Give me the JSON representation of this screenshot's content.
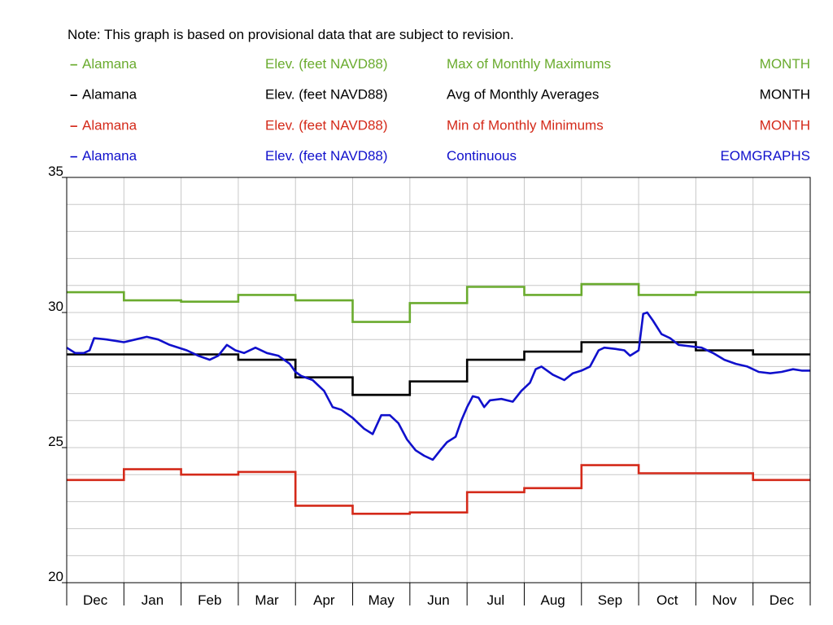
{
  "note": "Note: This graph is based on provisional data that are subject to revision.",
  "legend": [
    {
      "marker": "–",
      "site": "Alamana",
      "param": "Elev. (feet NAVD88)",
      "stat": "Max of Monthly Maximums",
      "period": "MONTH",
      "color": "#6aab2e"
    },
    {
      "marker": "–",
      "site": "Alamana",
      "param": "Elev. (feet NAVD88)",
      "stat": "Avg of Monthly Averages",
      "period": "MONTH",
      "color": "#000000"
    },
    {
      "marker": "–",
      "site": "Alamana",
      "param": "Elev. (feet NAVD88)",
      "stat": "Min of Monthly Minimums",
      "period": "MONTH",
      "color": "#d42a1a"
    },
    {
      "marker": "–",
      "site": "Alamana",
      "param": "Elev. (feet NAVD88)",
      "stat": "Continuous",
      "period": "EOMGRAPHS",
      "color": "#1010cc"
    }
  ],
  "chart_data": {
    "type": "line",
    "xlim": [
      0,
      13
    ],
    "ylim": [
      20,
      35
    ],
    "yticks": [
      20,
      25,
      30,
      35
    ],
    "months": [
      "Dec",
      "Jan",
      "Feb",
      "Mar",
      "Apr",
      "May",
      "Jun",
      "Jul",
      "Aug",
      "Sep",
      "Oct",
      "Nov",
      "Dec"
    ],
    "grid": true,
    "step_series": [
      {
        "stat": "Max of Monthly Maximums",
        "color": "#6aab2e",
        "values": [
          30.75,
          30.45,
          30.4,
          30.65,
          30.45,
          29.65,
          30.35,
          30.95,
          30.65,
          31.05,
          30.65,
          30.75,
          30.75
        ]
      },
      {
        "stat": "Avg of Monthly Averages",
        "color": "#000000",
        "values": [
          28.45,
          28.45,
          28.45,
          28.25,
          27.6,
          26.95,
          27.45,
          28.25,
          28.55,
          28.9,
          28.9,
          28.6,
          28.45
        ]
      },
      {
        "stat": "Min of Monthly Minimums",
        "color": "#d42a1a",
        "values": [
          23.8,
          24.2,
          24.0,
          24.1,
          22.85,
          22.55,
          22.6,
          23.35,
          23.5,
          24.35,
          24.05,
          24.05,
          23.8
        ]
      }
    ],
    "continuous": {
      "stat": "Continuous",
      "color": "#1010cc",
      "points": [
        [
          0.0,
          28.7
        ],
        [
          0.15,
          28.5
        ],
        [
          0.3,
          28.5
        ],
        [
          0.4,
          28.6
        ],
        [
          0.48,
          29.05
        ],
        [
          0.7,
          29.0
        ],
        [
          1.0,
          28.9
        ],
        [
          1.2,
          29.0
        ],
        [
          1.4,
          29.1
        ],
        [
          1.6,
          29.0
        ],
        [
          1.8,
          28.8
        ],
        [
          2.1,
          28.6
        ],
        [
          2.3,
          28.4
        ],
        [
          2.5,
          28.25
        ],
        [
          2.65,
          28.4
        ],
        [
          2.8,
          28.8
        ],
        [
          2.95,
          28.6
        ],
        [
          3.1,
          28.5
        ],
        [
          3.3,
          28.7
        ],
        [
          3.5,
          28.5
        ],
        [
          3.7,
          28.4
        ],
        [
          3.9,
          28.1
        ],
        [
          4.0,
          27.8
        ],
        [
          4.1,
          27.65
        ],
        [
          4.3,
          27.5
        ],
        [
          4.5,
          27.1
        ],
        [
          4.65,
          26.5
        ],
        [
          4.8,
          26.4
        ],
        [
          5.0,
          26.1
        ],
        [
          5.2,
          25.7
        ],
        [
          5.35,
          25.5
        ],
        [
          5.5,
          26.2
        ],
        [
          5.65,
          26.2
        ],
        [
          5.8,
          25.9
        ],
        [
          5.95,
          25.3
        ],
        [
          6.1,
          24.9
        ],
        [
          6.25,
          24.7
        ],
        [
          6.4,
          24.55
        ],
        [
          6.55,
          24.95
        ],
        [
          6.65,
          25.2
        ],
        [
          6.8,
          25.4
        ],
        [
          6.9,
          26.0
        ],
        [
          7.0,
          26.5
        ],
        [
          7.1,
          26.9
        ],
        [
          7.2,
          26.85
        ],
        [
          7.3,
          26.5
        ],
        [
          7.4,
          26.75
        ],
        [
          7.6,
          26.8
        ],
        [
          7.8,
          26.7
        ],
        [
          7.95,
          27.1
        ],
        [
          8.1,
          27.4
        ],
        [
          8.2,
          27.9
        ],
        [
          8.3,
          28.0
        ],
        [
          8.5,
          27.7
        ],
        [
          8.7,
          27.5
        ],
        [
          8.85,
          27.75
        ],
        [
          9.0,
          27.85
        ],
        [
          9.15,
          28.0
        ],
        [
          9.3,
          28.6
        ],
        [
          9.4,
          28.7
        ],
        [
          9.6,
          28.65
        ],
        [
          9.75,
          28.6
        ],
        [
          9.85,
          28.4
        ],
        [
          10.0,
          28.6
        ],
        [
          10.08,
          29.95
        ],
        [
          10.15,
          30.0
        ],
        [
          10.25,
          29.7
        ],
        [
          10.4,
          29.2
        ],
        [
          10.55,
          29.05
        ],
        [
          10.7,
          28.8
        ],
        [
          10.9,
          28.75
        ],
        [
          11.1,
          28.7
        ],
        [
          11.3,
          28.5
        ],
        [
          11.5,
          28.25
        ],
        [
          11.7,
          28.1
        ],
        [
          11.9,
          28.0
        ],
        [
          12.1,
          27.8
        ],
        [
          12.3,
          27.75
        ],
        [
          12.5,
          27.8
        ],
        [
          12.7,
          27.9
        ],
        [
          12.85,
          27.85
        ],
        [
          13.0,
          27.85
        ]
      ]
    }
  }
}
